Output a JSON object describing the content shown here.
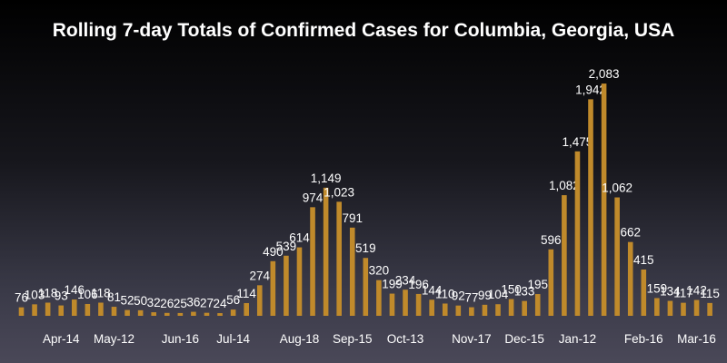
{
  "chart_data": {
    "type": "bar",
    "title": "Rolling 7-day Totals of Confirmed Cases for Columbia, Georgia, USA",
    "xlabel": "",
    "ylabel": "",
    "ylim": [
      0,
      2100
    ],
    "grid": false,
    "bar_color": "#c08a2b",
    "text_color": "#ffffff",
    "x_tick_labels": [
      "Apr-14",
      "May-12",
      "Jun-16",
      "Jul-14",
      "Aug-18",
      "Sep-15",
      "Oct-13",
      "Nov-17",
      "Dec-15",
      "Jan-12",
      "Feb-16",
      "Mar-16"
    ],
    "x_tick_bar_index": [
      3,
      7,
      12,
      16,
      21,
      25,
      29,
      34,
      38,
      42,
      47,
      51
    ],
    "values": [
      76,
      103,
      118,
      93,
      146,
      106,
      118,
      81,
      52,
      50,
      32,
      26,
      25,
      36,
      27,
      24,
      56,
      114,
      274,
      490,
      539,
      614,
      974,
      1149,
      1023,
      791,
      519,
      320,
      199,
      234,
      196,
      144,
      110,
      92,
      77,
      99,
      104,
      150,
      133,
      195,
      596,
      1082,
      1475,
      1942,
      2083,
      1062,
      662,
      415,
      159,
      134,
      117,
      142,
      115
    ],
    "value_labels": [
      "76",
      "103",
      "118",
      "93",
      "146",
      "106",
      "118",
      "81",
      "52",
      "50",
      "32",
      "26",
      "25",
      "36",
      "27",
      "24",
      "56",
      "114",
      "274",
      "490",
      "539",
      "614",
      "974",
      "1,149",
      "1,023",
      "791",
      "519",
      "320",
      "199",
      "234",
      "196",
      "144",
      "110",
      "92",
      "77",
      "99",
      "104",
      "150",
      "133",
      "195",
      "596",
      "1,082",
      "1,475",
      "1,942",
      "2,083",
      "1,062",
      "662",
      "415",
      "159",
      "134",
      "117",
      "142",
      "115"
    ]
  }
}
